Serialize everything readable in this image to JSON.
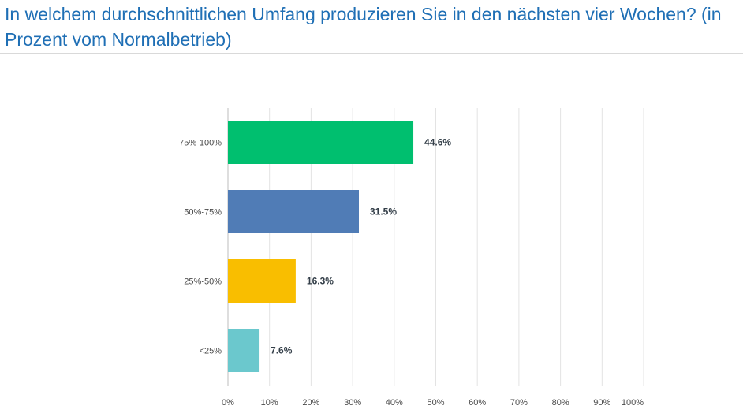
{
  "page": {
    "title": "In welchem durchschnittlichen Umfang produzieren Sie in den nächsten vier Wochen? (in Prozent vom Normalbetrieb)"
  },
  "chart_data": {
    "type": "bar",
    "orientation": "horizontal",
    "categories": [
      "75%-100%",
      "50%-75%",
      "25%-50%",
      "<25%"
    ],
    "values": [
      44.6,
      31.5,
      16.3,
      7.6
    ],
    "value_labels": [
      "44.6%",
      "31.5%",
      "16.3%",
      "7.6%"
    ],
    "colors": [
      "#00bf6f",
      "#507cb6",
      "#f9be00",
      "#6bc8cd"
    ],
    "xlim": [
      0,
      100
    ],
    "x_ticks": [
      "0%",
      "10%",
      "20%",
      "30%",
      "40%",
      "50%",
      "60%",
      "70%",
      "80%",
      "90%",
      "100%"
    ],
    "grid": true,
    "gridline_color": "#e3e3e3"
  }
}
